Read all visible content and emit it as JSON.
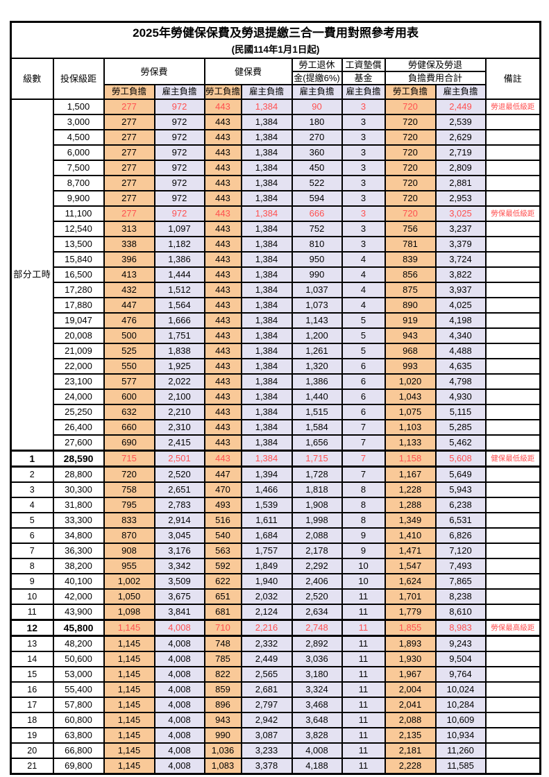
{
  "title": {
    "line1": "2025年勞健保保費及勞退提繳三合一費用對照參考用表",
    "line2": "(民國114年1月1日起)"
  },
  "header": {
    "level": "級數",
    "bracket": "投保級距",
    "labor_insurance": "勞保費",
    "health_insurance": "健保費",
    "pension": {
      "line1": "勞工退休",
      "line2": "金(提繳6%)"
    },
    "wage_fund": {
      "line1": "工資墊償",
      "line2": "基金"
    },
    "total": {
      "line1": "勞健保及勞退",
      "line2": "負擔費用合計"
    },
    "remark": "備註",
    "employee": "勞工負擔",
    "employer": "雇主負擔"
  },
  "part_time_label": "部分工時",
  "part_time_rowspan": 23,
  "colors": {
    "employee_bg": "#F9C998",
    "employer_bg": "#E4E2F2",
    "highlight_text": "#FF5050",
    "border": "#000000"
  },
  "rows": [
    {
      "bracket": "1,500",
      "values": [
        "277",
        "972",
        "443",
        "1,384",
        "90",
        "3",
        "720",
        "2,449"
      ],
      "remark": "勞退最低級距",
      "hl": true
    },
    {
      "bracket": "3,000",
      "values": [
        "277",
        "972",
        "443",
        "1,384",
        "180",
        "3",
        "720",
        "2,539"
      ],
      "remark": ""
    },
    {
      "bracket": "4,500",
      "values": [
        "277",
        "972",
        "443",
        "1,384",
        "270",
        "3",
        "720",
        "2,629"
      ],
      "remark": ""
    },
    {
      "bracket": "6,000",
      "values": [
        "277",
        "972",
        "443",
        "1,384",
        "360",
        "3",
        "720",
        "2,719"
      ],
      "remark": ""
    },
    {
      "bracket": "7,500",
      "values": [
        "277",
        "972",
        "443",
        "1,384",
        "450",
        "3",
        "720",
        "2,809"
      ],
      "remark": ""
    },
    {
      "bracket": "8,700",
      "values": [
        "277",
        "972",
        "443",
        "1,384",
        "522",
        "3",
        "720",
        "2,881"
      ],
      "remark": ""
    },
    {
      "bracket": "9,900",
      "values": [
        "277",
        "972",
        "443",
        "1,384",
        "594",
        "3",
        "720",
        "2,953"
      ],
      "remark": ""
    },
    {
      "bracket": "11,100",
      "values": [
        "277",
        "972",
        "443",
        "1,384",
        "666",
        "3",
        "720",
        "3,025"
      ],
      "remark": "勞保最低級距",
      "hl": true
    },
    {
      "bracket": "12,540",
      "values": [
        "313",
        "1,097",
        "443",
        "1,384",
        "752",
        "3",
        "756",
        "3,237"
      ],
      "remark": ""
    },
    {
      "bracket": "13,500",
      "values": [
        "338",
        "1,182",
        "443",
        "1,384",
        "810",
        "3",
        "781",
        "3,379"
      ],
      "remark": ""
    },
    {
      "bracket": "15,840",
      "values": [
        "396",
        "1,386",
        "443",
        "1,384",
        "950",
        "4",
        "839",
        "3,724"
      ],
      "remark": ""
    },
    {
      "bracket": "16,500",
      "values": [
        "413",
        "1,444",
        "443",
        "1,384",
        "990",
        "4",
        "856",
        "3,822"
      ],
      "remark": ""
    },
    {
      "bracket": "17,280",
      "values": [
        "432",
        "1,512",
        "443",
        "1,384",
        "1,037",
        "4",
        "875",
        "3,937"
      ],
      "remark": ""
    },
    {
      "bracket": "17,880",
      "values": [
        "447",
        "1,564",
        "443",
        "1,384",
        "1,073",
        "4",
        "890",
        "4,025"
      ],
      "remark": ""
    },
    {
      "bracket": "19,047",
      "values": [
        "476",
        "1,666",
        "443",
        "1,384",
        "1,143",
        "5",
        "919",
        "4,198"
      ],
      "remark": ""
    },
    {
      "bracket": "20,008",
      "values": [
        "500",
        "1,751",
        "443",
        "1,384",
        "1,200",
        "5",
        "943",
        "4,340"
      ],
      "remark": ""
    },
    {
      "bracket": "21,009",
      "values": [
        "525",
        "1,838",
        "443",
        "1,384",
        "1,261",
        "5",
        "968",
        "4,488"
      ],
      "remark": ""
    },
    {
      "bracket": "22,000",
      "values": [
        "550",
        "1,925",
        "443",
        "1,384",
        "1,320",
        "6",
        "993",
        "4,635"
      ],
      "remark": ""
    },
    {
      "bracket": "23,100",
      "values": [
        "577",
        "2,022",
        "443",
        "1,384",
        "1,386",
        "6",
        "1,020",
        "4,798"
      ],
      "remark": ""
    },
    {
      "bracket": "24,000",
      "values": [
        "600",
        "2,100",
        "443",
        "1,384",
        "1,440",
        "6",
        "1,043",
        "4,930"
      ],
      "remark": ""
    },
    {
      "bracket": "25,250",
      "values": [
        "632",
        "2,210",
        "443",
        "1,384",
        "1,515",
        "6",
        "1,075",
        "5,115"
      ],
      "remark": ""
    },
    {
      "bracket": "26,400",
      "values": [
        "660",
        "2,310",
        "443",
        "1,384",
        "1,584",
        "7",
        "1,103",
        "5,285"
      ],
      "remark": ""
    },
    {
      "bracket": "27,600",
      "values": [
        "690",
        "2,415",
        "443",
        "1,384",
        "1,656",
        "7",
        "1,133",
        "5,462"
      ],
      "remark": ""
    },
    {
      "level": "1",
      "bracket": "28,590",
      "values": [
        "715",
        "2,501",
        "443",
        "1,384",
        "1,715",
        "7",
        "1,158",
        "5,608"
      ],
      "remark": "健保最低級距",
      "hl": true,
      "emph": true
    },
    {
      "level": "2",
      "bracket": "28,800",
      "values": [
        "720",
        "2,520",
        "447",
        "1,394",
        "1,728",
        "7",
        "1,167",
        "5,649"
      ],
      "remark": ""
    },
    {
      "level": "3",
      "bracket": "30,300",
      "values": [
        "758",
        "2,651",
        "470",
        "1,466",
        "1,818",
        "8",
        "1,228",
        "5,943"
      ],
      "remark": ""
    },
    {
      "level": "4",
      "bracket": "31,800",
      "values": [
        "795",
        "2,783",
        "493",
        "1,539",
        "1,908",
        "8",
        "1,288",
        "6,238"
      ],
      "remark": ""
    },
    {
      "level": "5",
      "bracket": "33,300",
      "values": [
        "833",
        "2,914",
        "516",
        "1,611",
        "1,998",
        "8",
        "1,349",
        "6,531"
      ],
      "remark": ""
    },
    {
      "level": "6",
      "bracket": "34,800",
      "values": [
        "870",
        "3,045",
        "540",
        "1,684",
        "2,088",
        "9",
        "1,410",
        "6,826"
      ],
      "remark": ""
    },
    {
      "level": "7",
      "bracket": "36,300",
      "values": [
        "908",
        "3,176",
        "563",
        "1,757",
        "2,178",
        "9",
        "1,471",
        "7,120"
      ],
      "remark": ""
    },
    {
      "level": "8",
      "bracket": "38,200",
      "values": [
        "955",
        "3,342",
        "592",
        "1,849",
        "2,292",
        "10",
        "1,547",
        "7,493"
      ],
      "remark": ""
    },
    {
      "level": "9",
      "bracket": "40,100",
      "values": [
        "1,002",
        "3,509",
        "622",
        "1,940",
        "2,406",
        "10",
        "1,624",
        "7,865"
      ],
      "remark": ""
    },
    {
      "level": "10",
      "bracket": "42,000",
      "values": [
        "1,050",
        "3,675",
        "651",
        "2,032",
        "2,520",
        "11",
        "1,701",
        "8,238"
      ],
      "remark": ""
    },
    {
      "level": "11",
      "bracket": "43,900",
      "values": [
        "1,098",
        "3,841",
        "681",
        "2,124",
        "2,634",
        "11",
        "1,779",
        "8,610"
      ],
      "remark": ""
    },
    {
      "level": "12",
      "bracket": "45,800",
      "values": [
        "1,145",
        "4,008",
        "710",
        "2,216",
        "2,748",
        "11",
        "1,855",
        "8,983"
      ],
      "remark": "勞保最高級距",
      "hl": true,
      "emph": true
    },
    {
      "level": "13",
      "bracket": "48,200",
      "values": [
        "1,145",
        "4,008",
        "748",
        "2,332",
        "2,892",
        "11",
        "1,893",
        "9,243"
      ],
      "remark": ""
    },
    {
      "level": "14",
      "bracket": "50,600",
      "values": [
        "1,145",
        "4,008",
        "785",
        "2,449",
        "3,036",
        "11",
        "1,930",
        "9,504"
      ],
      "remark": ""
    },
    {
      "level": "15",
      "bracket": "53,000",
      "values": [
        "1,145",
        "4,008",
        "822",
        "2,565",
        "3,180",
        "11",
        "1,967",
        "9,764"
      ],
      "remark": ""
    },
    {
      "level": "16",
      "bracket": "55,400",
      "values": [
        "1,145",
        "4,008",
        "859",
        "2,681",
        "3,324",
        "11",
        "2,004",
        "10,024"
      ],
      "remark": ""
    },
    {
      "level": "17",
      "bracket": "57,800",
      "values": [
        "1,145",
        "4,008",
        "896",
        "2,797",
        "3,468",
        "11",
        "2,041",
        "10,284"
      ],
      "remark": ""
    },
    {
      "level": "18",
      "bracket": "60,800",
      "values": [
        "1,145",
        "4,008",
        "943",
        "2,942",
        "3,648",
        "11",
        "2,088",
        "10,609"
      ],
      "remark": ""
    },
    {
      "level": "19",
      "bracket": "63,800",
      "values": [
        "1,145",
        "4,008",
        "990",
        "3,087",
        "3,828",
        "11",
        "2,135",
        "10,934"
      ],
      "remark": ""
    },
    {
      "level": "20",
      "bracket": "66,800",
      "values": [
        "1,145",
        "4,008",
        "1,036",
        "3,233",
        "4,008",
        "11",
        "2,181",
        "11,260"
      ],
      "remark": ""
    },
    {
      "level": "21",
      "bracket": "69,800",
      "values": [
        "1,145",
        "4,008",
        "1,083",
        "3,378",
        "4,188",
        "11",
        "2,228",
        "11,585"
      ],
      "remark": ""
    }
  ]
}
